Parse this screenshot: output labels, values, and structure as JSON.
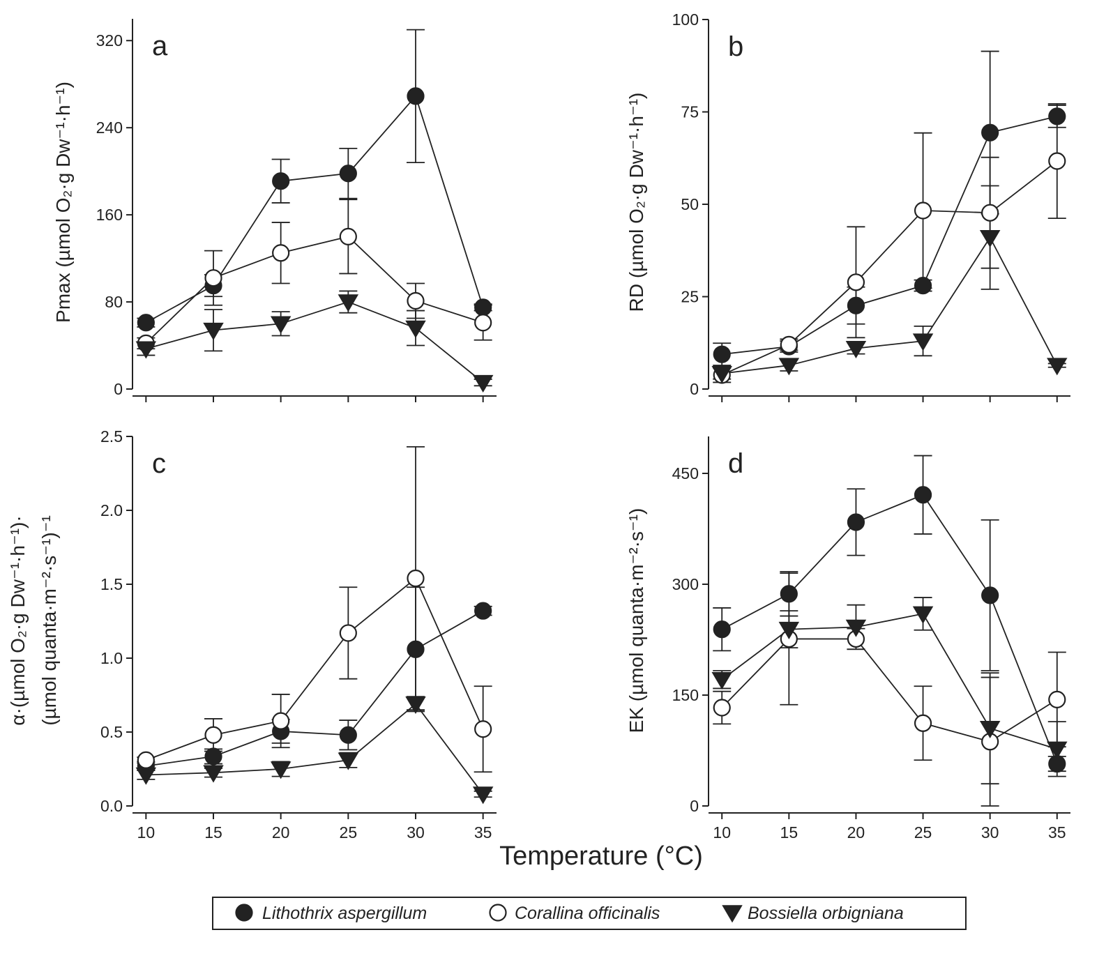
{
  "x_label": "Temperature (°C)",
  "chart_data": [
    {
      "type": "line",
      "panel": "a",
      "y_label": [
        "Pmax (µmol O₂·g Dw⁻¹·h⁻¹)"
      ],
      "x": [
        10,
        15,
        20,
        25,
        30,
        35
      ],
      "xlim": [
        9,
        36
      ],
      "xticks": [
        10,
        15,
        20,
        25,
        30,
        35
      ],
      "xtick_labels": false,
      "ylim": [
        0,
        340
      ],
      "yticks": [
        0,
        80,
        160,
        240,
        320
      ],
      "series": [
        {
          "name": "Lithothrix aspergillum",
          "marker": "circle",
          "color": "#222222",
          "values": [
            61,
            95,
            191,
            198,
            269,
            75
          ],
          "errors": [
            4,
            10,
            20,
            23,
            61,
            3
          ]
        },
        {
          "name": "Corallina officinalis",
          "marker": "circle",
          "color": "#ffffff",
          "values": [
            42,
            102,
            125,
            140,
            81,
            61
          ],
          "errors": [
            5,
            25,
            28,
            34,
            16,
            16
          ]
        },
        {
          "name": "Bossiella orbigniana",
          "marker": "triangle",
          "color": "#222222",
          "values": [
            37,
            54,
            60,
            80,
            56,
            6
          ],
          "errors": [
            6,
            19,
            11,
            10,
            16,
            3
          ]
        }
      ]
    },
    {
      "type": "line",
      "panel": "b",
      "y_label": [
        "RD (µmol O₂·g Dw⁻¹·h⁻¹)"
      ],
      "x": [
        10,
        15,
        20,
        25,
        30,
        35
      ],
      "xlim": [
        9,
        36
      ],
      "xticks": [
        10,
        15,
        20,
        25,
        30,
        35
      ],
      "xtick_labels": false,
      "ylim": [
        0,
        100
      ],
      "yticks": [
        0,
        25,
        50,
        75,
        100
      ],
      "series": [
        {
          "marker": "circle",
          "color": "#222222",
          "values": [
            9.4,
            11.5,
            22.6,
            28,
            69.4,
            73.8
          ],
          "errors": [
            3,
            1.5,
            5,
            1.5,
            22,
            3
          ]
        },
        {
          "marker": "circle",
          "color": "#ffffff",
          "values": [
            3.8,
            12,
            28.9,
            48.3,
            47.7,
            61.7
          ],
          "errors": [
            2,
            1.5,
            15,
            21,
            15,
            15.5
          ]
        },
        {
          "marker": "triangle",
          "color": "#222222",
          "values": [
            4.2,
            6.4,
            11,
            13,
            41,
            6.4
          ],
          "errors": [
            1.5,
            1.5,
            1.5,
            4,
            14,
            0.5
          ]
        }
      ]
    },
    {
      "type": "line",
      "panel": "c",
      "y_label": [
        "α·(µmol O₂·g Dw⁻¹·h⁻¹)·",
        "(µmol quanta·m⁻²·s⁻¹)⁻¹"
      ],
      "x": [
        10,
        15,
        20,
        25,
        30,
        35
      ],
      "xlim": [
        9,
        36
      ],
      "xticks": [
        10,
        15,
        20,
        25,
        30,
        35
      ],
      "xtick_labels": true,
      "ylim": [
        0,
        2.5
      ],
      "yticks": [
        {
          "value": 0,
          "label": "0.0"
        },
        0.5,
        {
          "value": 1,
          "label": "1.0"
        },
        1.5,
        {
          "value": 2,
          "label": "2.0"
        },
        2.5
      ],
      "series": [
        {
          "marker": "circle",
          "color": "#222222",
          "values": [
            0.27,
            0.335,
            0.505,
            0.48,
            1.06,
            1.32
          ],
          "errors": [
            0.03,
            0.05,
            0.08,
            0.1,
            0.42,
            0.03
          ]
        },
        {
          "marker": "circle",
          "color": "#ffffff",
          "values": [
            0.31,
            0.48,
            0.575,
            1.17,
            1.54,
            0.52
          ],
          "errors": [
            0.02,
            0.11,
            0.18,
            0.31,
            0.89,
            0.29
          ]
        },
        {
          "marker": "triangle",
          "color": "#222222",
          "values": [
            0.21,
            0.225,
            0.25,
            0.31,
            0.69,
            0.08
          ],
          "errors": [
            0.03,
            0.03,
            0.05,
            0.05,
            0.05,
            0.02
          ]
        }
      ]
    },
    {
      "type": "line",
      "panel": "d",
      "y_label": [
        "EK (µmol quanta·m⁻²·s⁻¹)"
      ],
      "x": [
        10,
        15,
        20,
        25,
        30,
        35
      ],
      "xlim": [
        9,
        36
      ],
      "xticks": [
        10,
        15,
        20,
        25,
        30,
        35
      ],
      "xtick_labels": true,
      "ylim": [
        0,
        500
      ],
      "yticks": [
        0,
        150,
        300,
        450
      ],
      "series": [
        {
          "marker": "circle",
          "color": "#222222",
          "values": [
            239,
            287,
            384,
            421,
            285,
            57
          ],
          "errors": [
            29,
            30,
            45,
            53,
            102,
            10
          ]
        },
        {
          "marker": "circle",
          "color": "#ffffff",
          "values": [
            133,
            226,
            226,
            112,
            87,
            144
          ],
          "errors": [
            22,
            89,
            14,
            50,
            87,
            64
          ]
        },
        {
          "marker": "triangle",
          "color": "#222222",
          "values": [
            171,
            239,
            242,
            260,
            105,
            77
          ],
          "errors": [
            12,
            25,
            30,
            22,
            75,
            37
          ]
        }
      ]
    }
  ]
}
